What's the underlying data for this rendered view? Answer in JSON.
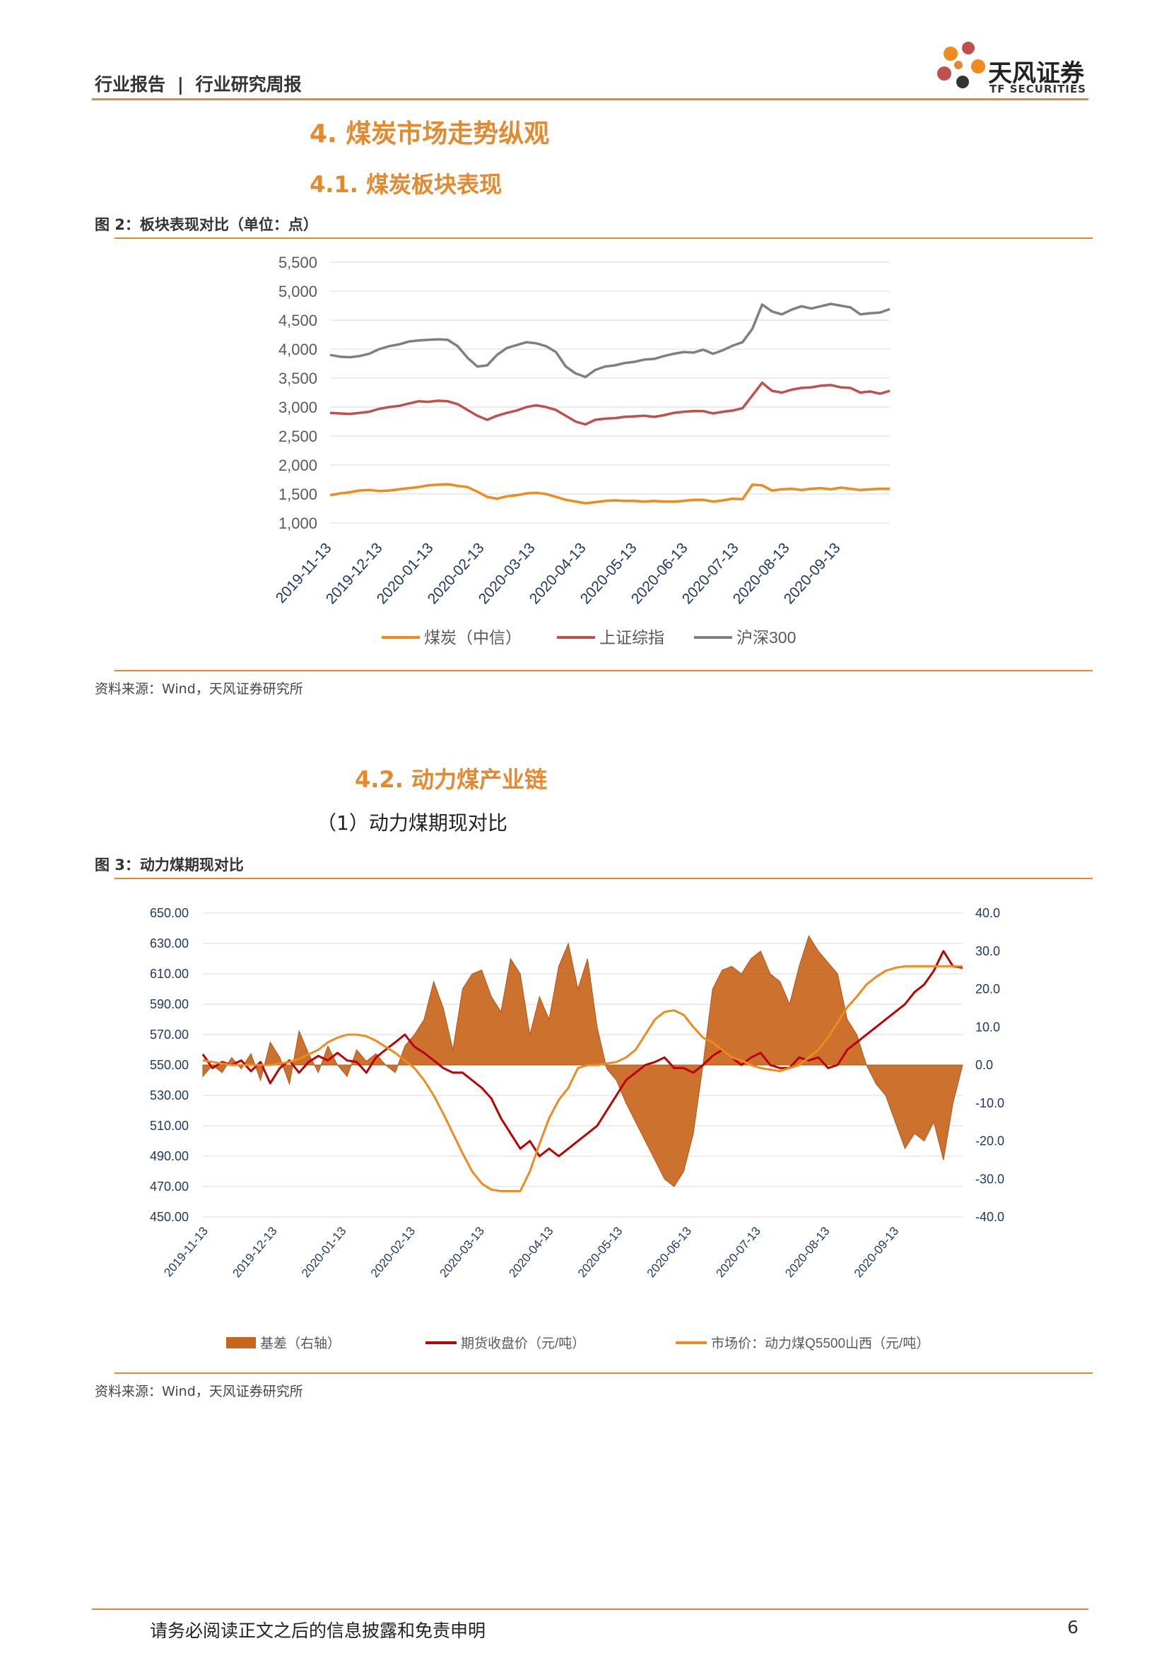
{
  "header": {
    "category": "行业报告",
    "separator": "|",
    "report_type": "行业研究周报",
    "brand_cn": "天风证券",
    "brand_en": "TF SECURITIES"
  },
  "section_4": {
    "title": "4. 煤炭市场走势纵观"
  },
  "section_4_1": {
    "title": "4.1. 煤炭板块表现"
  },
  "figure_2": {
    "caption": "图 2：板块表现对比（单位：点）",
    "source": "资料来源：Wind，天风证券研究所"
  },
  "section_4_2": {
    "title": "4.2. 动力煤产业链",
    "subtitle": "（1）动力煤期现对比"
  },
  "figure_3": {
    "caption": "图 3：动力煤期现对比",
    "source": "资料来源：Wind，天风证券研究所"
  },
  "chart_data": [
    {
      "type": "line",
      "title": "",
      "xlabel": "",
      "ylabel": "",
      "ylim": [
        1000,
        5500
      ],
      "yticks": [
        "5,500",
        "5,000",
        "4,500",
        "4,000",
        "3,500",
        "3,000",
        "2,500",
        "2,000",
        "1,500",
        "1,000"
      ],
      "x_ticks": [
        "2019-11-13",
        "2019-12-13",
        "2020-01-13",
        "2020-02-13",
        "2020-03-13",
        "2020-04-13",
        "2020-05-13",
        "2020-06-13",
        "2020-07-13",
        "2020-08-13",
        "2020-09-13"
      ],
      "grid": true,
      "legend_position": "bottom",
      "colors": {
        "煤炭": "#ef8a1c",
        "上证": "#c0504d",
        "沪深": "#7f7f7f"
      },
      "series": [
        {
          "name": "煤炭（中信）",
          "color": "#ef8a1c",
          "values": [
            1480,
            1510,
            1530,
            1560,
            1570,
            1550,
            1560,
            1580,
            1600,
            1620,
            1650,
            1660,
            1670,
            1640,
            1620,
            1540,
            1450,
            1420,
            1460,
            1480,
            1510,
            1520,
            1500,
            1450,
            1400,
            1370,
            1340,
            1360,
            1380,
            1390,
            1380,
            1380,
            1370,
            1380,
            1370,
            1370,
            1380,
            1400,
            1400,
            1370,
            1390,
            1420,
            1410,
            1660,
            1650,
            1560,
            1580,
            1590,
            1570,
            1590,
            1600,
            1580,
            1610,
            1590,
            1570,
            1580,
            1590,
            1590
          ]
        },
        {
          "name": "上证综指",
          "color": "#c0504d",
          "values": [
            2900,
            2890,
            2880,
            2900,
            2920,
            2970,
            3000,
            3020,
            3060,
            3100,
            3090,
            3110,
            3100,
            3050,
            2950,
            2850,
            2780,
            2850,
            2900,
            2940,
            3000,
            3030,
            3000,
            2950,
            2850,
            2750,
            2700,
            2780,
            2800,
            2810,
            2830,
            2840,
            2850,
            2830,
            2860,
            2900,
            2920,
            2930,
            2930,
            2890,
            2920,
            2940,
            2980,
            3200,
            3420,
            3280,
            3250,
            3300,
            3330,
            3340,
            3370,
            3380,
            3340,
            3330,
            3250,
            3270,
            3230,
            3280
          ]
        },
        {
          "name": "沪深300",
          "color": "#7f7f7f",
          "values": [
            3900,
            3870,
            3860,
            3880,
            3920,
            4000,
            4050,
            4080,
            4130,
            4150,
            4160,
            4170,
            4160,
            4050,
            3850,
            3700,
            3720,
            3900,
            4020,
            4070,
            4120,
            4100,
            4050,
            3950,
            3700,
            3580,
            3520,
            3640,
            3700,
            3720,
            3760,
            3780,
            3820,
            3830,
            3880,
            3920,
            3950,
            3940,
            3990,
            3920,
            3980,
            4060,
            4120,
            4350,
            4770,
            4650,
            4600,
            4680,
            4740,
            4700,
            4740,
            4780,
            4750,
            4720,
            4600,
            4620,
            4630,
            4690
          ]
        }
      ]
    },
    {
      "type": "bar+line",
      "title": "",
      "xlabel": "",
      "ylabel": "",
      "ylim": [
        450,
        650
      ],
      "y2lim": [
        -40,
        40
      ],
      "yticks": [
        "650.00",
        "630.00",
        "610.00",
        "590.00",
        "570.00",
        "550.00",
        "530.00",
        "510.00",
        "490.00",
        "470.00",
        "450.00"
      ],
      "y2ticks": [
        "40.0",
        "30.0",
        "20.0",
        "10.0",
        "0.0",
        "-10.0",
        "-20.0",
        "-30.0",
        "-40.0"
      ],
      "x_ticks": [
        "2019-11-13",
        "2019-12-13",
        "2020-01-13",
        "2020-02-13",
        "2020-03-13",
        "2020-04-13",
        "2020-05-13",
        "2020-06-13",
        "2020-07-13",
        "2020-08-13",
        "2020-09-13"
      ],
      "grid": true,
      "legend_position": "bottom",
      "series": [
        {
          "name": "基差（右轴）",
          "axis": "right",
          "color": "#c8651c",
          "values": [
            -3,
            0,
            -2,
            2,
            -1,
            3,
            -4,
            6,
            2,
            -5,
            9,
            3,
            -2,
            5,
            0,
            -3,
            4,
            1,
            3,
            0,
            -2,
            5,
            8,
            12,
            22,
            15,
            4,
            20,
            24,
            25,
            18,
            14,
            28,
            24,
            8,
            18,
            12,
            26,
            32,
            20,
            28,
            10,
            -1,
            -4,
            -10,
            -15,
            -20,
            -25,
            -30,
            -32,
            -28,
            -18,
            0,
            20,
            25,
            26,
            24,
            28,
            30,
            24,
            22,
            16,
            26,
            34,
            30,
            27,
            24,
            12,
            8,
            0,
            -5,
            -8,
            -15,
            -22,
            -18,
            -20,
            -15,
            -25,
            -10,
            0
          ]
        },
        {
          "name": "期货收盘价（元/吨）",
          "axis": "left",
          "color": "#c00000",
          "values": [
            557,
            548,
            552,
            550,
            553,
            546,
            552,
            538,
            548,
            553,
            545,
            552,
            556,
            553,
            558,
            553,
            552,
            545,
            555,
            560,
            565,
            570,
            562,
            558,
            553,
            548,
            545,
            545,
            540,
            535,
            528,
            515,
            505,
            495,
            500,
            490,
            495,
            490,
            495,
            500,
            505,
            510,
            520,
            530,
            540,
            545,
            550,
            552,
            555,
            548,
            548,
            545,
            550,
            556,
            560,
            555,
            550,
            555,
            558,
            550,
            548,
            548,
            555,
            553,
            555,
            548,
            550,
            560,
            565,
            570,
            575,
            580,
            585,
            590,
            598,
            603,
            612,
            625,
            615,
            614
          ]
        },
        {
          "name": "市场价：动力煤Q5500山西（元/吨）",
          "axis": "left",
          "color": "#ef8a1c",
          "values": [
            553,
            552,
            551,
            550,
            550,
            550,
            550,
            550,
            551,
            552,
            554,
            557,
            560,
            565,
            568,
            570,
            570,
            569,
            566,
            562,
            558,
            553,
            548,
            540,
            530,
            518,
            505,
            492,
            480,
            472,
            468,
            467,
            467,
            467,
            480,
            498,
            515,
            527,
            535,
            548,
            550,
            550,
            551,
            552,
            555,
            560,
            570,
            580,
            585,
            586,
            583,
            575,
            568,
            565,
            560,
            555,
            553,
            550,
            548,
            547,
            546,
            548,
            550,
            555,
            560,
            568,
            578,
            588,
            595,
            603,
            608,
            612,
            614,
            615,
            615,
            615,
            615,
            615,
            615,
            615
          ]
        }
      ]
    }
  ],
  "footer": {
    "disclaimer": "请务必阅读正文之后的信息披露和免责申明",
    "page": "6"
  }
}
